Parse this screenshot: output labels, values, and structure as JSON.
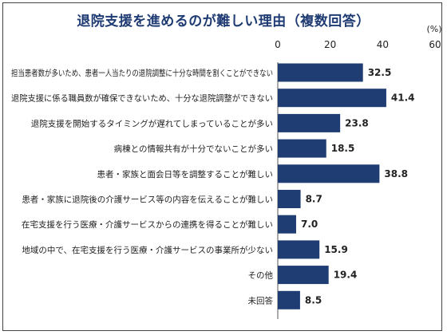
{
  "chart_data": {
    "type": "bar",
    "orientation": "horizontal",
    "title": "退院支援を進めるのが難しい理由（複数回答）",
    "unit_label": "(%)",
    "xlim": [
      0,
      60
    ],
    "xticks": [
      "0",
      "20",
      "40",
      "60"
    ],
    "grid": false,
    "bar_color": "#1f3d73",
    "categories": [
      "担当患者数が多いため、患者一人当たりの退院調整に十分な時間を割くことができない",
      "退院支援に係る職員数が確保できないため、十分な退院調整ができない",
      "退院支援を開始するタイミングが遅れてしまっていることが多い",
      "病棟との情報共有が十分でないことが多い",
      "患者・家族と面会日等を調整することが難しい",
      "患者・家族に退院後の介護サービス等の内容を伝えることが難しい",
      "在宅支援を行う医療・介護サービスからの連携を得ることが難しい",
      "地域の中で、在宅支援を行う医療・介護サービスの事業所が少ない",
      "その他",
      "未回答"
    ],
    "values": [
      32.5,
      41.4,
      23.8,
      18.5,
      38.8,
      8.7,
      7.0,
      15.9,
      19.4,
      8.5
    ],
    "value_labels": [
      "32.5",
      "41.4",
      "23.8",
      "18.5",
      "38.8",
      "8.7",
      "7.0",
      "15.9",
      "19.4",
      "8.5"
    ]
  }
}
